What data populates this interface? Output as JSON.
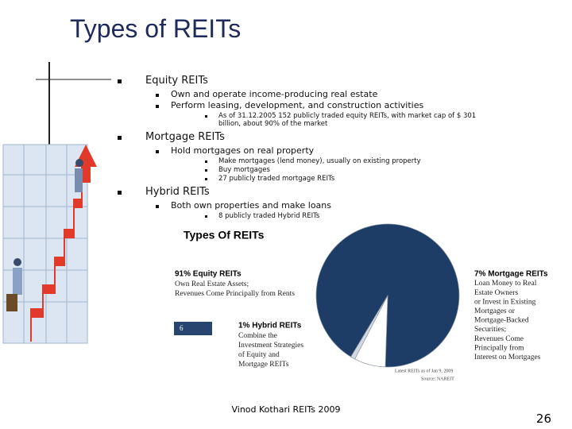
{
  "slide": {
    "title": "Types of REITs",
    "bullets": [
      {
        "text": "Equity REITs",
        "items": [
          {
            "text": "Own and operate income-producing real estate"
          },
          {
            "text": "Perform leasing, development, and construction activities",
            "items": [
              "As of 31.12.2005 152 publicly traded equity REITs, with market cap of $ 301 billion, about 90% of the market"
            ]
          }
        ]
      },
      {
        "text": "Mortgage REITs",
        "items": [
          {
            "text": "Hold mortgages on real property",
            "items": [
              "Make mortgages (lend money), usually on existing property",
              "Buy mortgages",
              "27 publicly traded mortgage REITs"
            ]
          }
        ]
      },
      {
        "text": "Hybrid REITs",
        "items": [
          {
            "text": "Both own properties and make loans",
            "items": [
              "8 publicly traded Hybrid REITs"
            ]
          }
        ]
      }
    ],
    "footer": "Vinod Kothari REITs 2009",
    "page_number": "26"
  },
  "chart_data": {
    "type": "pie",
    "title": "Types Of REITs",
    "categories": [
      "91% Equity REITs",
      "7% Mortgage REITs",
      "1% Hybrid REITs"
    ],
    "values": [
      91,
      7,
      1
    ],
    "colors": [
      "#1d3c66",
      "#ffffff",
      "#d3d9e0"
    ],
    "descriptions": [
      [
        "Own Real Estate Assets;",
        "Revenues Come Principally from Rents"
      ],
      [
        "Loan Money to Real",
        "Estate Owners",
        "or Invest in Existing",
        "Mortgages or",
        "Mortgage-Backed",
        "Securities;",
        "Revenues Come",
        "Principally from",
        "Interest on Mortgages"
      ],
      [
        "Combine the",
        "Investment Strategies",
        "of Equity and",
        "Mortgage REITs"
      ]
    ],
    "annotations": [
      "6",
      "Latest REITs as of Jan 9, 2009",
      "Source: NAREIT"
    ]
  }
}
